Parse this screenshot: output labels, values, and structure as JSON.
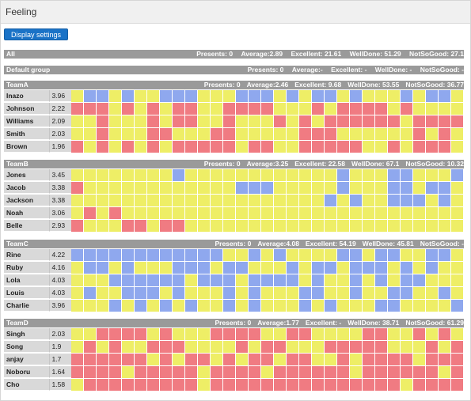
{
  "window": {
    "title": "Feeling"
  },
  "toolbar": {
    "display_settings_label": "Display settings"
  },
  "colors": {
    "bad": "#f07b82",
    "well": "#eeee66",
    "excellent": "#8fa8ee",
    "bar": "#9a9a9a"
  },
  "summary_all": {
    "name": "All",
    "presents": "Presents: 0",
    "average": "Average:2.89",
    "excellent": "Excellent: 21.61",
    "welldone": "WellDone: 51.29",
    "notsogood": "NotSoGood: 27.1"
  },
  "summary_default": {
    "name": "Default group",
    "presents": "Presents: 0",
    "average": "Average:-",
    "excellent": "Excellent: -",
    "welldone": "WellDone: -",
    "notsogood": "NotSoGood: -"
  },
  "teams": [
    {
      "name": "TeamA",
      "presents": "Presents: 0",
      "average": "Average:2.46",
      "excellent": "Excellent: 9.68",
      "welldone": "WellDone: 53.55",
      "notsogood": "NotSoGood: 36.77",
      "members": [
        {
          "name": "Inazo",
          "score": "3.96",
          "cells": "2332322333222333232332322232332"
        },
        {
          "name": "Johnson",
          "score": "2.22",
          "cells": "1112121211221111222121111212222"
        },
        {
          "name": "Williams",
          "score": "2.09",
          "cells": "2212221211221222121211111121111"
        },
        {
          "name": "Smith",
          "score": "2.03",
          "cells": "2212221122211222221112222221212"
        },
        {
          "name": "Brown",
          "score": "1.96",
          "cells": "1212121211111211221111122121112"
        }
      ]
    },
    {
      "name": "TeamB",
      "presents": "Presents: 0",
      "average": "Average:3.25",
      "excellent": "Excellent: 22.58",
      "welldone": "WellDone: 67.1",
      "notsogood": "NotSoGood: 10.32",
      "members": [
        {
          "name": "Jones",
          "score": "3.45",
          "cells": "2222222232222222222223222332223"
        },
        {
          "name": "Jacob",
          "score": "3.38",
          "cells": "1222222222222333222223222332332"
        },
        {
          "name": "Jackson",
          "score": "3.38",
          "cells": "2222222222222222222232322333232"
        },
        {
          "name": "Noah",
          "score": "3.06",
          "cells": "2121222222222222222222222222222"
        },
        {
          "name": "Belle",
          "score": "2.93",
          "cells": "1222112112222222222222222222222"
        }
      ]
    },
    {
      "name": "TeamC",
      "presents": "Presents: 0",
      "average": "Average:4.08",
      "excellent": "Excellent: 54.19",
      "welldone": "WellDone: 45.81",
      "notsogood": "NotSoGood: -",
      "members": [
        {
          "name": "Rine",
          "score": "4.22",
          "cells": "3333333333332232322223323322332"
        },
        {
          "name": "Ruby",
          "score": "4.16",
          "cells": "2332322233323322232332333232322"
        },
        {
          "name": "Lola",
          "score": "4.03",
          "cells": "2223333332333233332322323233222"
        },
        {
          "name": "Louis",
          "score": "4.03",
          "cells": "2322333232223232223322322332232"
        },
        {
          "name": "Charlie",
          "score": "3.96",
          "cells": "2223232323223232223232223322223"
        }
      ]
    },
    {
      "name": "TeamD",
      "presents": "Presents: 0",
      "average": "Average:1.77",
      "excellent": "Excellent: -",
      "welldone": "WellDone: 38.71",
      "notsogood": "NotSoGood: 61.29",
      "members": [
        {
          "name": "Singh",
          "score": "2.03",
          "cells": "2211112122211112211222211221212"
        },
        {
          "name": "Song",
          "score": "1.9",
          "cells": "2121221112222121122211111222121"
        },
        {
          "name": "anjay",
          "score": "1.7",
          "cells": "1111112121121211211221211112111"
        },
        {
          "name": "Noboru",
          "score": "1.64",
          "cells": "1111211111211112111111211111121"
        },
        {
          "name": "Cho",
          "score": "1.58",
          "cells": "2111111111211111111111111121111"
        }
      ]
    }
  ]
}
